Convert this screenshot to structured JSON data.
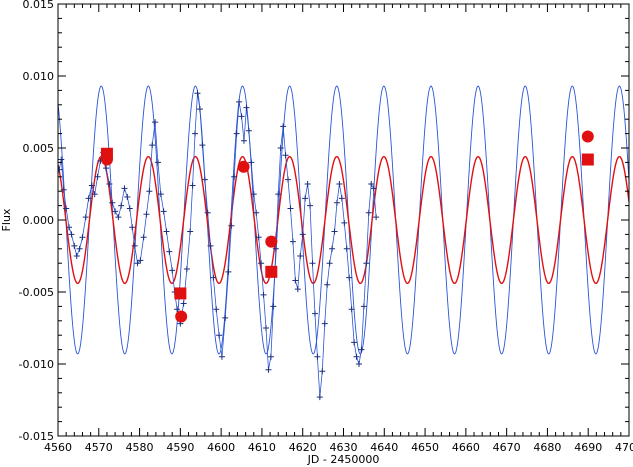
{
  "chart_data": {
    "type": "line",
    "xlabel": "JD - 2450000",
    "ylabel": "Flux",
    "xlim": [
      4560,
      4700
    ],
    "ylim": [
      -0.015,
      0.015
    ],
    "x_ticks": [
      4560,
      4570,
      4580,
      4590,
      4600,
      4610,
      4620,
      4630,
      4640,
      4650,
      4660,
      4670,
      4680,
      4690,
      4700
    ],
    "x_tick_labels": [
      "4560",
      "4570",
      "4580",
      "4590",
      "4600",
      "4610",
      "4620",
      "4630",
      "4640",
      "4650",
      "4660",
      "4670",
      "4680",
      "4690",
      "4700"
    ],
    "y_ticks": [
      -0.015,
      -0.01,
      -0.005,
      0.0,
      0.005,
      0.01,
      0.015
    ],
    "y_tick_labels": [
      "-0.015",
      "-0.010",
      "-0.005",
      "0.000",
      "0.005",
      "0.010",
      "0.015"
    ],
    "grid": false,
    "legend": "none",
    "colors": {
      "blue": "#2a55d6",
      "red": "#e01010",
      "axis": "#000000"
    },
    "models": [
      {
        "color": "#2a55d6",
        "amplitude": 0.0093,
        "period": 11.55,
        "peak_x": 4570.6
      },
      {
        "color": "#e01010",
        "amplitude": 0.0044,
        "period": 11.55,
        "peak_x": 4570.6
      }
    ],
    "series": [
      {
        "marker": "plus",
        "color": "#2a55d6",
        "connected": true,
        "x": [
          4560.3,
          4560.8,
          4561.4,
          4562.0,
          4562.7,
          4563.3,
          4564.0,
          4564.6,
          4565.3,
          4566.0,
          4566.8,
          4567.5,
          4568.3,
          4569.0,
          4569.7,
          4570.4,
          4571.1,
          4571.8,
          4572.6,
          4573.3,
          4574.0,
          4574.8,
          4575.5,
          4576.3,
          4577.0,
          4577.6,
          4578.2,
          4578.8,
          4579.5,
          4580.2,
          4581.0,
          4581.7,
          4582.4,
          4583.1,
          4583.8,
          4584.5,
          4585.2,
          4585.9,
          4586.6,
          4587.3,
          4588.0,
          4588.6,
          4589.2,
          4590.0,
          4590.8,
          4591.6,
          4592.4,
          4593.0,
          4593.6,
          4594.2,
          4594.8,
          4595.4,
          4596.0,
          4596.7,
          4597.4,
          4598.1,
          4598.8,
          4599.5,
          4600.2,
          4601.0,
          4601.8,
          4602.5,
          4603.2,
          4603.8,
          4604.4,
          4605.0,
          4605.6,
          4606.2,
          4606.8,
          4607.4,
          4608.0,
          4608.6,
          4609.2,
          4609.8,
          4610.4,
          4611.0,
          4611.6,
          4612.2,
          4612.8,
          4613.4,
          4614.0,
          4614.6,
          4615.2,
          4615.8,
          4616.4,
          4617.0,
          4617.6,
          4618.2,
          4618.8,
          4619.4,
          4620.0,
          4620.6,
          4621.2,
          4621.8,
          4622.4,
          4623.0,
          4623.6,
          4624.2,
          4624.8,
          4625.4,
          4626.0,
          4626.6,
          4627.2,
          4627.8,
          4628.4,
          4629.0,
          4629.6,
          4630.2,
          4630.8,
          4631.4,
          4632.0,
          4632.6,
          4633.2,
          4633.8,
          4634.4,
          4635.0,
          4635.6,
          4636.2,
          4636.8,
          4637.4,
          4638.0
        ],
        "y": [
          0.0035,
          0.0042,
          0.0021,
          0.0008,
          -0.0005,
          -0.001,
          -0.0018,
          -0.0025,
          -0.002,
          -0.0012,
          0.0002,
          0.0015,
          0.0024,
          0.0018,
          0.003,
          0.0041,
          0.0047,
          0.0036,
          0.0025,
          0.0012,
          0.0006,
          0.0002,
          0.001,
          0.0022,
          0.0016,
          0.0008,
          -0.0005,
          -0.0018,
          -0.003,
          -0.0028,
          -0.0012,
          0.0004,
          0.002,
          0.0052,
          0.0068,
          0.004,
          0.0018,
          0.0006,
          -0.0008,
          -0.0022,
          -0.0035,
          -0.005,
          -0.0062,
          -0.0072,
          -0.0058,
          -0.0034,
          -0.0008,
          0.0024,
          0.006,
          0.0088,
          0.0077,
          0.0052,
          0.0028,
          0.0005,
          -0.0018,
          -0.004,
          -0.0062,
          -0.008,
          -0.0095,
          -0.0068,
          -0.0036,
          -0.0004,
          0.003,
          0.006,
          0.0082,
          0.0072,
          0.0055,
          0.0078,
          0.0062,
          0.004,
          0.0018,
          0.0005,
          -0.0012,
          -0.003,
          -0.0052,
          -0.0075,
          -0.0104,
          -0.0095,
          -0.006,
          -0.002,
          0.0018,
          0.005,
          0.0065,
          0.0045,
          0.0028,
          0.0008,
          -0.0015,
          -0.0042,
          -0.0048,
          -0.0025,
          -0.001,
          0.0015,
          0.0025,
          0.001,
          -0.003,
          -0.0065,
          -0.0095,
          -0.0123,
          -0.0105,
          -0.0072,
          -0.0045,
          -0.003,
          -0.002,
          -0.0008,
          0.0012,
          0.0025,
          0.0015,
          -0.0002,
          -0.002,
          -0.004,
          -0.0062,
          -0.0085,
          -0.0095,
          -0.01,
          -0.009,
          -0.006,
          -0.003,
          0.0005,
          0.0025,
          0.0022,
          0.0002
        ]
      },
      {
        "marker": "square",
        "color": "#e01010",
        "x": [
          4572.0,
          4590.0,
          4612.3,
          4689.9
        ],
        "y": [
          0.0046,
          -0.0051,
          -0.0036,
          0.0042
        ]
      },
      {
        "marker": "circle",
        "color": "#e01010",
        "x": [
          4572.0,
          4590.2,
          4605.5,
          4612.3,
          4689.9
        ],
        "y": [
          0.0042,
          -0.0067,
          0.0037,
          -0.0015,
          0.0058
        ]
      }
    ]
  }
}
